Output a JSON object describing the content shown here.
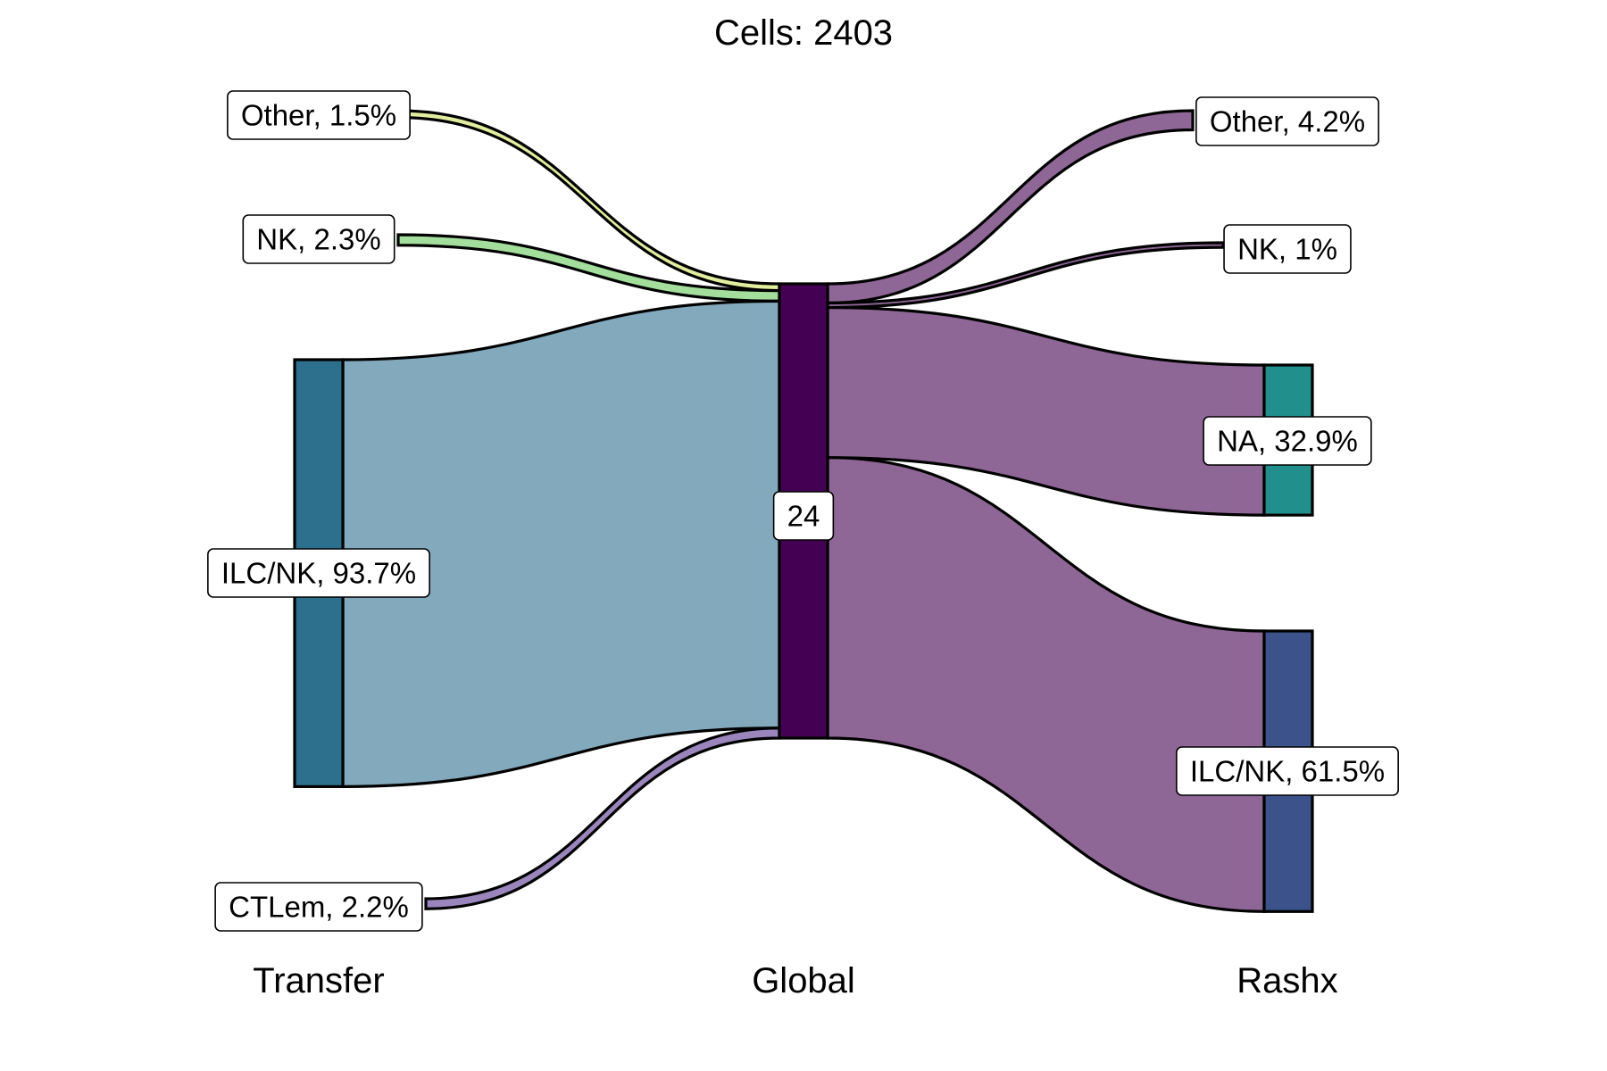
{
  "chart_data": {
    "type": "sankey",
    "title": "Cells:  2403",
    "axes": [
      "Transfer",
      "Global",
      "Rashx"
    ],
    "center_node": {
      "label": "24",
      "color": "#440154"
    },
    "left_nodes": [
      {
        "label": "Other, 1.5%",
        "value": 1.5,
        "color": "#DCE319",
        "flow_color": "#E2ED9E"
      },
      {
        "label": "NK, 2.3%",
        "value": 2.3,
        "color": "#73D055",
        "flow_color": "#A3DE9C"
      },
      {
        "label": "ILC/NK, 93.7%",
        "value": 93.7,
        "color": "#2D708E",
        "flow_color": "#82A9BC"
      },
      {
        "label": "CTLem, 2.2%",
        "value": 2.2,
        "color": "#482878",
        "flow_color": "#9A86BC"
      }
    ],
    "right_nodes": [
      {
        "label": "Other, 4.2%",
        "value": 4.2,
        "color": "#440154",
        "flow_color": "#8F6797"
      },
      {
        "label": "NK, 1%",
        "value": 1.0,
        "color": "#440154",
        "flow_color": "#8F6797"
      },
      {
        "label": "NA, 32.9%",
        "value": 32.9,
        "color": "#21908C",
        "flow_color": "#8F6797"
      },
      {
        "label": "ILC/NK, 61.5%",
        "value": 61.5,
        "color": "#3B528B",
        "flow_color": "#8F6797"
      }
    ]
  }
}
